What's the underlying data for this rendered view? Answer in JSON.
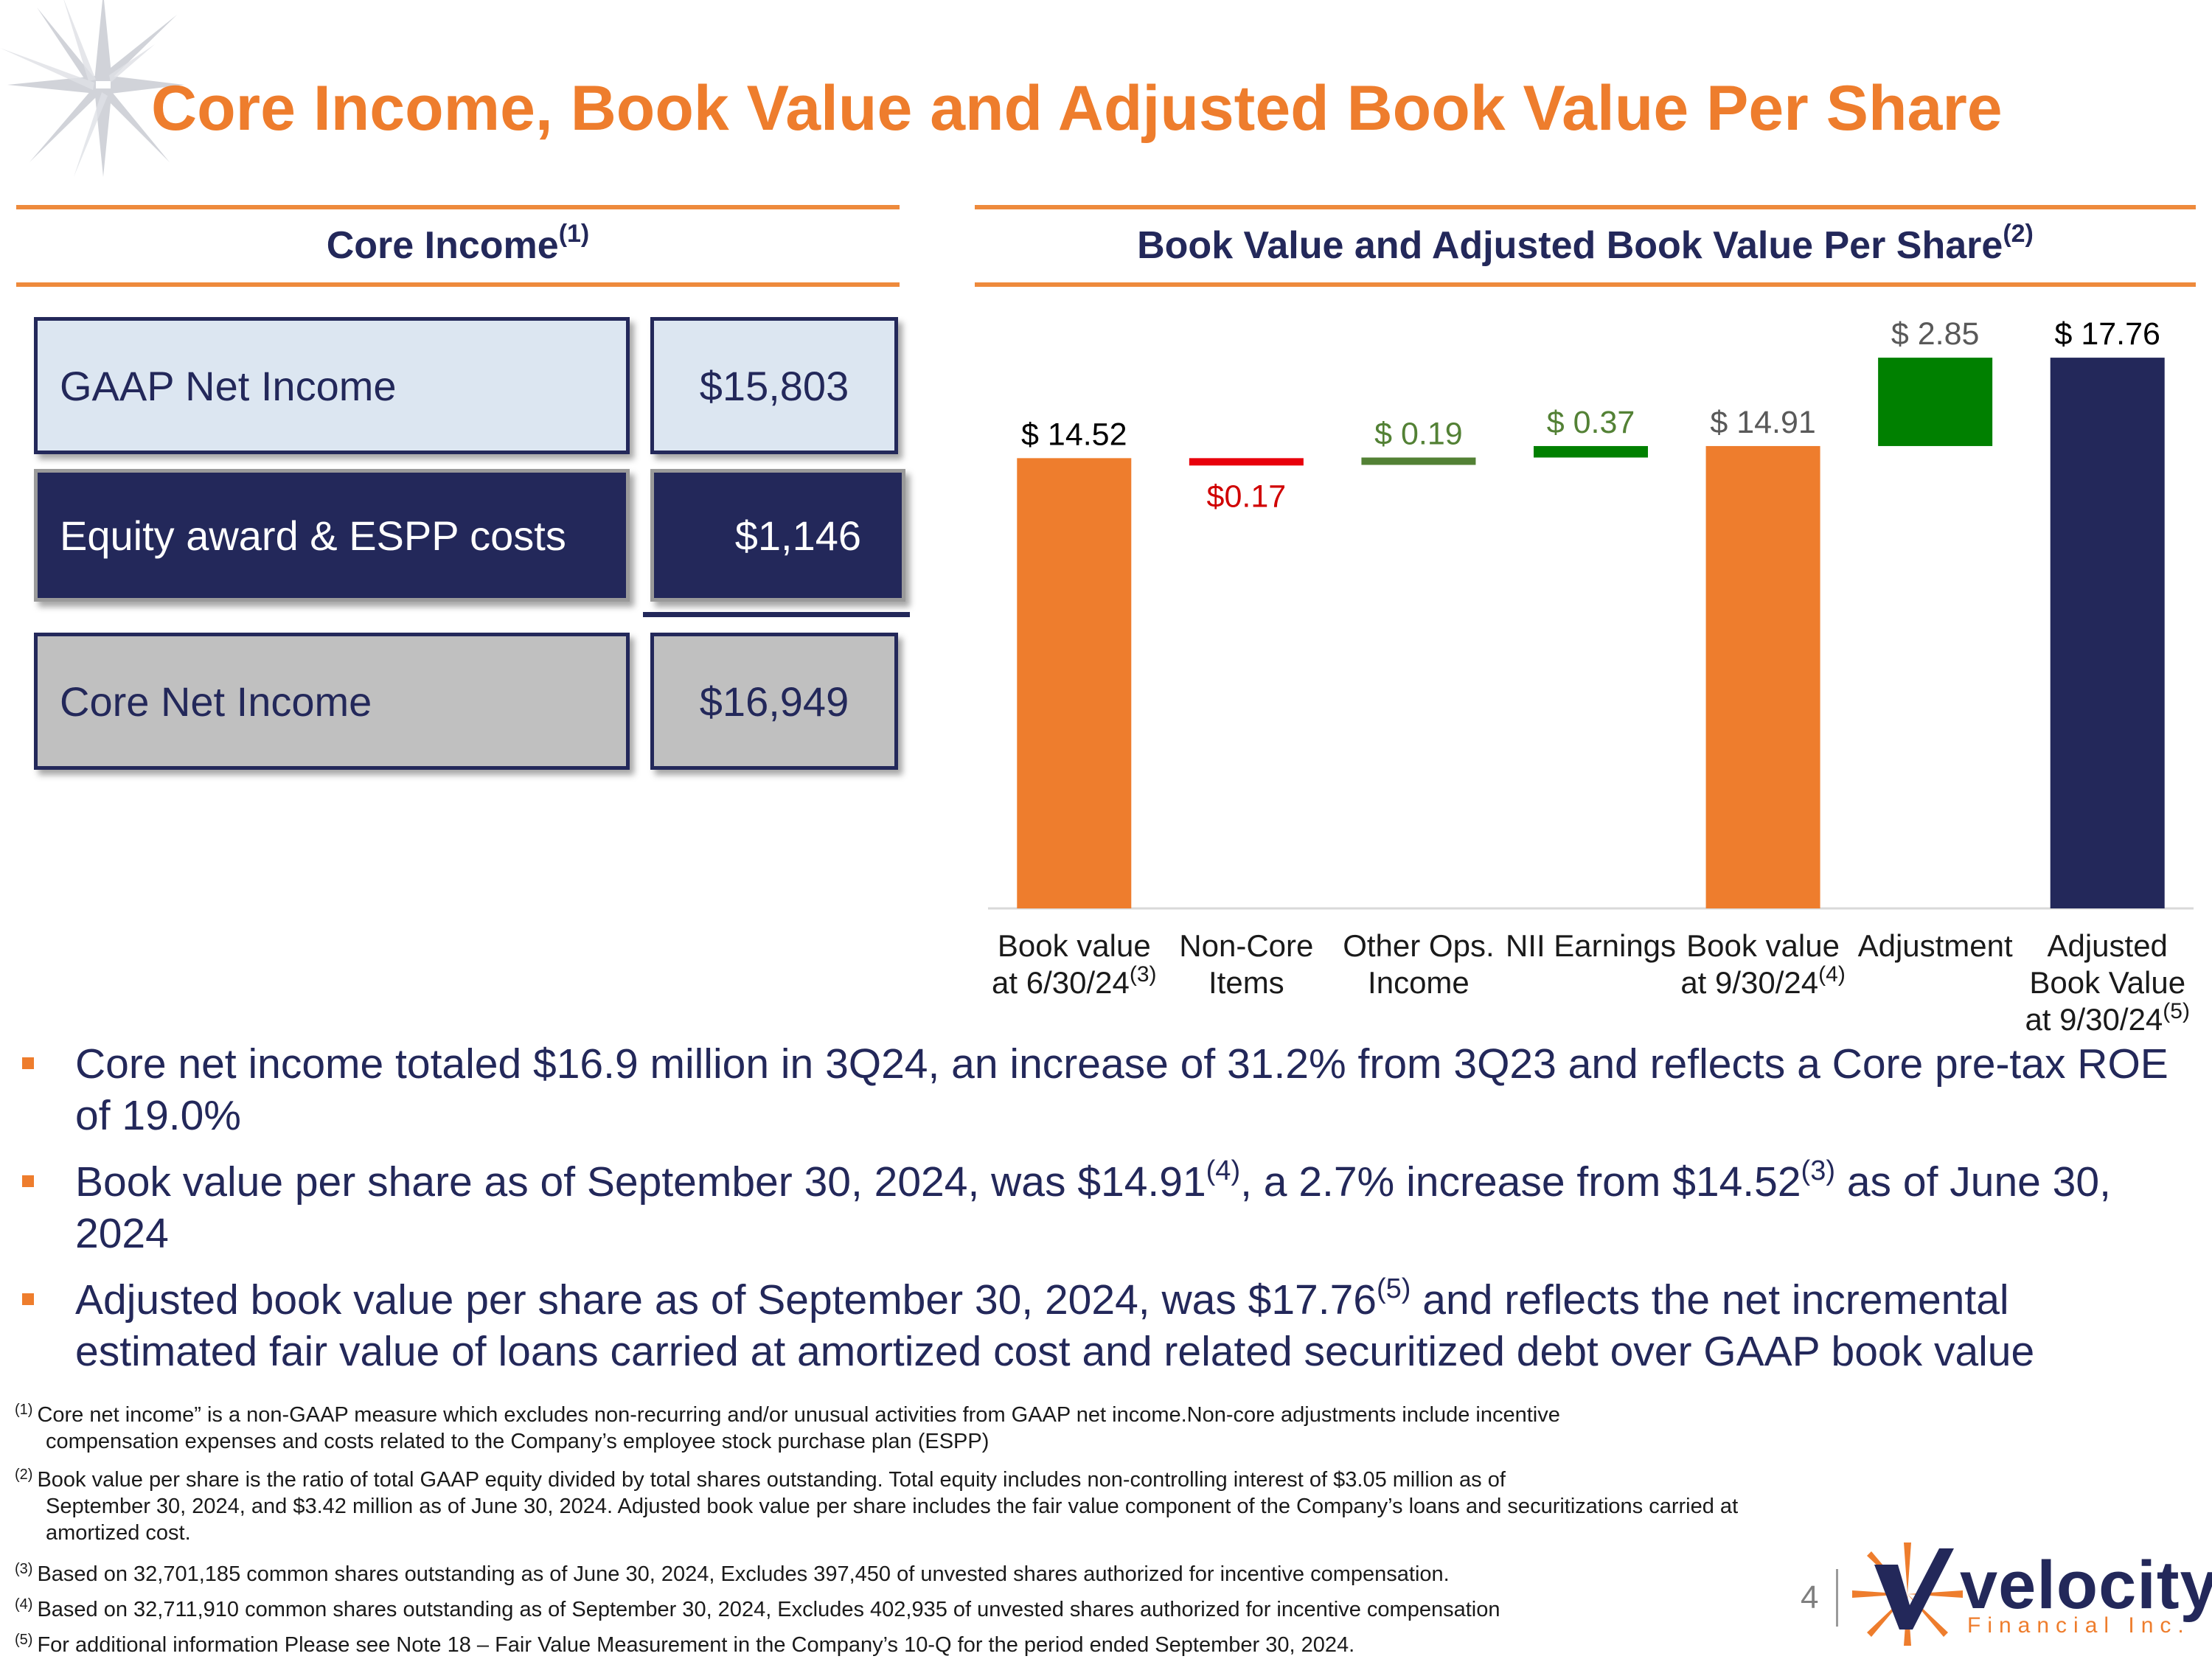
{
  "title": "Core Income, Book Value and Adjusted Book Value Per Share",
  "core_income": {
    "header": "Core Income",
    "header_note": "(1)",
    "rows": [
      {
        "label": "GAAP Net Income",
        "value": "$15,803"
      },
      {
        "label": "Equity award & ESPP costs",
        "value": "$1,146"
      },
      {
        "label": "Core Net Income",
        "value": "$16,949"
      }
    ]
  },
  "book_value": {
    "header": "Book Value and Adjusted Book Value Per Share",
    "header_note": "(2)"
  },
  "chart_data": {
    "type": "bar",
    "subtype": "waterfall",
    "categories": [
      {
        "line1": "Book value",
        "line2": "at 6/30/24",
        "note": "(3)"
      },
      {
        "line1": "Non-Core",
        "line2": "Items",
        "note": ""
      },
      {
        "line1": "Other Ops.",
        "line2": "Income",
        "note": ""
      },
      {
        "line1": "NII Earnings",
        "line2": "",
        "note": ""
      },
      {
        "line1": "Book value",
        "line2": "at 9/30/24",
        "note": "(4)"
      },
      {
        "line1": "Adjustment",
        "line2": "",
        "note": ""
      },
      {
        "line1": "Adjusted",
        "line2": "Book Value",
        "line3": "at 9/30/24",
        "note": "(5)"
      }
    ],
    "bars": [
      {
        "label": "$ 14.52",
        "start": 0,
        "end": 14.52,
        "color": "#ee7d2d",
        "label_color": "#000000",
        "label_pos": "above"
      },
      {
        "label": "$0.17",
        "start": 14.52,
        "end": 14.35,
        "color": "#e8000b",
        "label_color": "#d00000",
        "label_pos": "below"
      },
      {
        "label": "$ 0.19",
        "start": 14.35,
        "end": 14.54,
        "color": "#538135",
        "label_color": "#538135",
        "label_pos": "above"
      },
      {
        "label": "$ 0.37",
        "start": 14.54,
        "end": 14.91,
        "color": "#008000",
        "label_color": "#538135",
        "label_pos": "above"
      },
      {
        "label": "$ 14.91",
        "start": 0,
        "end": 14.91,
        "color": "#ee7d2d",
        "label_color": "#595959",
        "label_pos": "above"
      },
      {
        "label": "$ 2.85",
        "start": 14.91,
        "end": 17.76,
        "color": "#008000",
        "label_color": "#595959",
        "label_pos": "above"
      },
      {
        "label": "$ 17.76",
        "start": 0,
        "end": 17.76,
        "color": "#23285a",
        "label_color": "#000000",
        "label_pos": "above"
      }
    ],
    "ylim": [
      0,
      18
    ],
    "grid": false,
    "legend": "none"
  },
  "bullets": [
    {
      "parts": [
        {
          "t": "Core net income totaled $16.9 million in 3Q24, an increase of 31.2% from 3Q23 and reflects a Core pre-tax ROE of 19.0%"
        }
      ]
    },
    {
      "parts": [
        {
          "t": "Book value per share as of September 30, 2024, was $14.91"
        },
        {
          "sup": "(4)"
        },
        {
          "t": ", a 2.7% increase from $14.52"
        },
        {
          "sup": "(3)"
        },
        {
          "t": " as of June 30, 2024"
        }
      ]
    },
    {
      "parts": [
        {
          "t": "Adjusted book value per share as of September 30, 2024, was $17.76"
        },
        {
          "sup": "(5)"
        },
        {
          "t": " and reflects the net incremental estimated fair value of loans carried at amortized cost and related securitized debt over GAAP book value"
        }
      ]
    }
  ],
  "footnotes": [
    {
      "num": "(1)",
      "line1": "Core net income” is a non-GAAP measure which excludes non-recurring and/or unusual activities from GAAP net income.Non-core adjustments include incentive",
      "rest": "compensation expenses and costs related to the Company’s employee stock purchase plan (ESPP)"
    },
    {
      "num": "(2)",
      "line1": "Book value per share is the ratio of total GAAP equity divided by total shares outstanding. Total equity includes non-controlling interest of $3.05 million as of",
      "rest": "September 30, 2024, and $3.42 million as of June 30, 2024. Adjusted book value per share includes the fair value component of the Company’s loans and securitizations carried at amortized cost."
    },
    {
      "num": "(3)",
      "line1": "Based on 32,701,185 common shares outstanding as of June 30, 2024, Excludes 397,450 of unvested shares authorized for incentive compensation.",
      "rest": ""
    },
    {
      "num": "(4)",
      "line1": "Based on 32,711,910 common shares outstanding as of September 30, 2024, Excludes 402,935 of unvested shares authorized for incentive compensation",
      "rest": ""
    },
    {
      "num": "(5)",
      "line1": "For additional information Please see Note 18 – Fair Value Measurement in the Company’s 10-Q for the period ended September 30, 2024.",
      "rest": ""
    }
  ],
  "page_number": "4",
  "logo": {
    "name": "velocity",
    "tagline": "Financial Inc."
  },
  "colors": {
    "accent": "#ee7d2d",
    "navy": "#23285a"
  }
}
